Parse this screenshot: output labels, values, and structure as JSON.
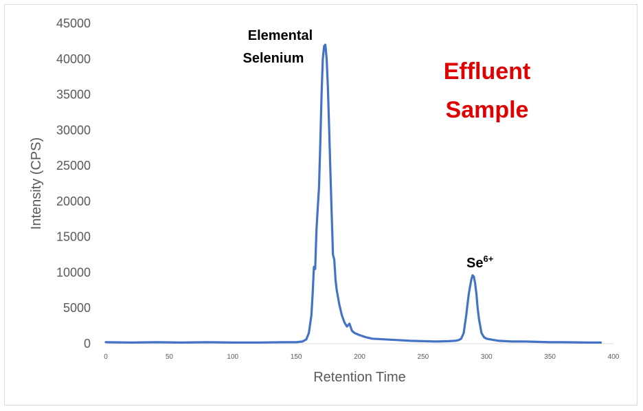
{
  "chart_data": {
    "type": "line",
    "xlabel": "Retention Time",
    "ylabel": "Intensity (CPS)",
    "xlim": [
      0,
      400
    ],
    "ylim": [
      0,
      45000
    ],
    "x_ticks": [
      "0",
      "50",
      "100",
      "150",
      "200",
      "250",
      "300",
      "350",
      "400"
    ],
    "y_ticks": [
      "0",
      "5000",
      "10000",
      "15000",
      "20000",
      "25000",
      "30000",
      "35000",
      "40000",
      "45000"
    ],
    "grid": false,
    "series": [
      {
        "color": "#4472c4",
        "x": [
          0,
          20,
          40,
          60,
          80,
          100,
          120,
          140,
          150,
          155,
          158,
          160,
          162,
          163,
          164,
          165,
          166,
          167,
          168,
          169,
          170,
          171,
          172,
          173,
          174,
          175,
          176,
          177,
          178,
          179,
          180,
          181,
          182,
          184,
          186,
          188,
          190,
          192,
          194,
          196,
          200,
          205,
          210,
          220,
          230,
          240,
          250,
          260,
          270,
          275,
          278,
          280,
          282,
          284,
          286,
          288,
          289,
          290,
          291,
          292,
          293,
          294,
          296,
          298,
          300,
          303,
          306,
          310,
          320,
          330,
          340,
          350,
          360,
          370,
          380,
          385,
          390
        ],
        "y": [
          200,
          150,
          200,
          150,
          200,
          150,
          150,
          200,
          200,
          300,
          600,
          1500,
          4000,
          7000,
          10800,
          10500,
          16000,
          19000,
          22000,
          28000,
          35000,
          40000,
          41800,
          42000,
          40000,
          36000,
          30000,
          24000,
          18000,
          12500,
          11800,
          9000,
          7500,
          5500,
          4000,
          3000,
          2400,
          2800,
          1800,
          1500,
          1200,
          900,
          700,
          600,
          500,
          400,
          350,
          300,
          350,
          400,
          500,
          700,
          1500,
          4000,
          7000,
          9000,
          9600,
          9400,
          8500,
          7000,
          5000,
          3500,
          1500,
          900,
          700,
          600,
          500,
          400,
          300,
          300,
          250,
          200,
          200,
          180,
          150,
          150,
          150
        ]
      }
    ],
    "annotations": {
      "peak1_line1": "Elemental",
      "peak1_line2": "Selenium",
      "peak2_base": "Se",
      "peak2_sup": "6+",
      "sample_line1": "Effluent",
      "sample_line2": "Sample"
    },
    "annotation_color": "#e00000"
  }
}
